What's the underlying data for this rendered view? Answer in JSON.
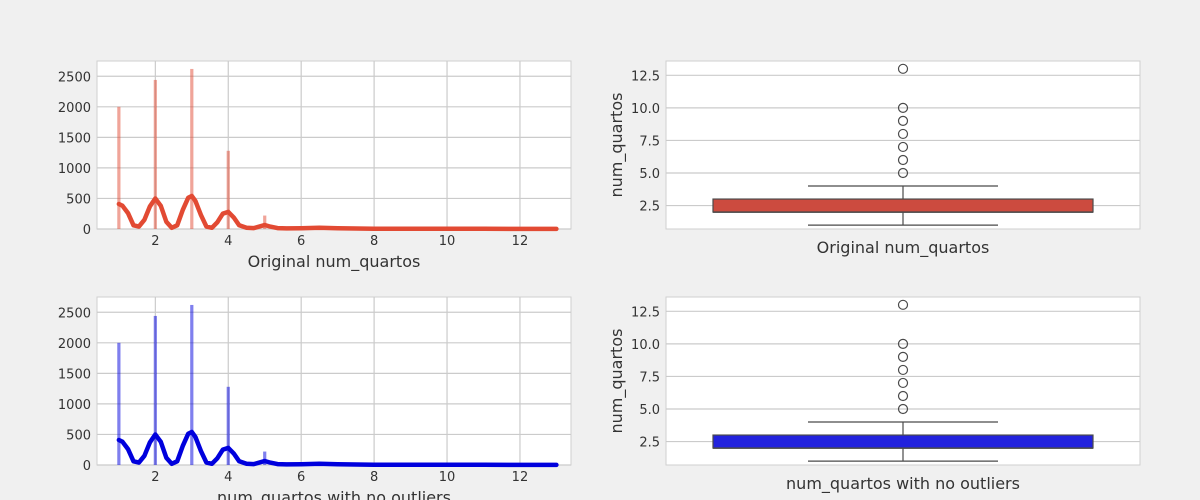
{
  "chart_data": [
    {
      "type": "histogram",
      "xlabel": "Original num_quartos",
      "ylabel": "",
      "xlim": [
        0.4,
        13.4
      ],
      "ylim": [
        0,
        2750
      ],
      "xticks": [
        2,
        4,
        6,
        8,
        10,
        12
      ],
      "yticks": [
        0,
        500,
        1000,
        1500,
        2000,
        2500
      ],
      "color": "#e24a33",
      "grid": true,
      "bars": [
        {
          "x": 1,
          "count": 2000
        },
        {
          "x": 2,
          "count": 2440
        },
        {
          "x": 3,
          "count": 2620
        },
        {
          "x": 4,
          "count": 1280
        },
        {
          "x": 5,
          "count": 220
        },
        {
          "x": 6,
          "count": 25
        },
        {
          "x": 7,
          "count": 8
        },
        {
          "x": 8,
          "count": 4
        },
        {
          "x": 9,
          "count": 1
        },
        {
          "x": 10,
          "count": 2
        },
        {
          "x": 13,
          "count": 1
        }
      ],
      "kde": {
        "x": [
          1,
          1.1,
          1.25,
          1.4,
          1.55,
          1.7,
          1.85,
          2,
          2.15,
          2.3,
          2.45,
          2.6,
          2.75,
          2.9,
          3,
          3.1,
          3.25,
          3.4,
          3.55,
          3.7,
          3.85,
          4,
          4.15,
          4.3,
          4.5,
          4.7,
          4.85,
          5,
          5.15,
          5.35,
          5.6,
          6,
          6.5,
          7,
          8,
          9,
          10,
          11,
          12,
          13
        ],
        "y": [
          410,
          380,
          260,
          60,
          40,
          150,
          370,
          500,
          380,
          120,
          20,
          60,
          310,
          510,
          540,
          460,
          230,
          40,
          20,
          110,
          250,
          280,
          190,
          60,
          20,
          15,
          40,
          65,
          40,
          15,
          10,
          12,
          20,
          12,
          5,
          4,
          4,
          3,
          2,
          2
        ]
      }
    },
    {
      "type": "box",
      "xlabel": "Original num_quartos",
      "ylabel": "num_quartos",
      "ylim": [
        0.7,
        13.6
      ],
      "yticks": [
        2.5,
        5.0,
        7.5,
        10.0,
        12.5
      ],
      "color": "#cc4b3f",
      "grid": true,
      "whisker_low": 1,
      "q1": 2,
      "median": 2,
      "q3": 3,
      "whisker_high": 4,
      "outliers": [
        5,
        6,
        7,
        8,
        9,
        10,
        13
      ]
    },
    {
      "type": "histogram",
      "xlabel": "num_quartos with no outliers",
      "ylabel": "",
      "xlim": [
        0.4,
        13.4
      ],
      "ylim": [
        0,
        2750
      ],
      "xticks": [
        2,
        4,
        6,
        8,
        10,
        12
      ],
      "yticks": [
        0,
        500,
        1000,
        1500,
        2000,
        2500
      ],
      "color": "#0000dd",
      "grid": true,
      "bars": [
        {
          "x": 1,
          "count": 2000
        },
        {
          "x": 2,
          "count": 2440
        },
        {
          "x": 3,
          "count": 2620
        },
        {
          "x": 4,
          "count": 1280
        },
        {
          "x": 5,
          "count": 220
        },
        {
          "x": 6,
          "count": 25
        },
        {
          "x": 7,
          "count": 8
        },
        {
          "x": 8,
          "count": 4
        },
        {
          "x": 9,
          "count": 1
        },
        {
          "x": 10,
          "count": 2
        },
        {
          "x": 13,
          "count": 1
        }
      ],
      "kde": {
        "x": [
          1,
          1.1,
          1.25,
          1.4,
          1.55,
          1.7,
          1.85,
          2,
          2.15,
          2.3,
          2.45,
          2.6,
          2.75,
          2.9,
          3,
          3.1,
          3.25,
          3.4,
          3.55,
          3.7,
          3.85,
          4,
          4.15,
          4.3,
          4.5,
          4.7,
          4.85,
          5,
          5.15,
          5.35,
          5.6,
          6,
          6.5,
          7,
          8,
          9,
          10,
          11,
          12,
          13
        ],
        "y": [
          410,
          380,
          260,
          60,
          40,
          150,
          370,
          500,
          380,
          120,
          20,
          60,
          310,
          510,
          540,
          460,
          230,
          40,
          20,
          110,
          250,
          280,
          190,
          60,
          20,
          15,
          40,
          65,
          40,
          15,
          10,
          12,
          20,
          12,
          5,
          4,
          4,
          3,
          2,
          2
        ]
      }
    },
    {
      "type": "box",
      "xlabel": "num_quartos with no outliers",
      "ylabel": "num_quartos",
      "ylim": [
        0.7,
        13.6
      ],
      "yticks": [
        2.5,
        5.0,
        7.5,
        10.0,
        12.5
      ],
      "color": "#2222dd",
      "grid": true,
      "whisker_low": 1,
      "q1": 2,
      "median": 2,
      "q3": 3,
      "whisker_high": 4,
      "outliers": [
        5,
        6,
        7,
        8,
        9,
        10,
        13
      ]
    }
  ]
}
